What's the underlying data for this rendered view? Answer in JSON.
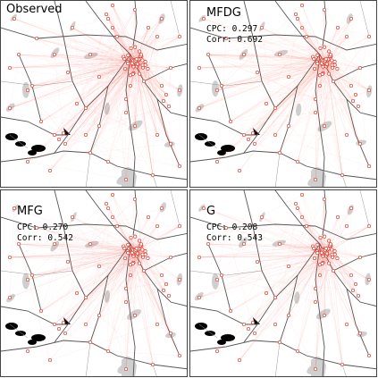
{
  "panels": [
    {
      "title": "Observed",
      "cpc": "",
      "corr": "",
      "flow_colors": "#e8533b"
    },
    {
      "title": "MFDG",
      "cpc": "CPC: 0.297",
      "corr": "Corr: 0.692"
    },
    {
      "title": "MFG",
      "cpc": "CPC: 0.270",
      "corr": "Corr: 0.542"
    },
    {
      "title": "G",
      "cpc": "CPC: 0.208",
      "corr": "Corr: 0.543"
    }
  ],
  "colors": {
    "flow_line": "#ee5a4a",
    "node_stroke": "#e0392b",
    "road": "#555555",
    "water": "#cfcfcf",
    "lake": "#000000",
    "panel_border": "#444444"
  },
  "icons": {
    "node": "circle-marker",
    "lake": "water-body"
  }
}
